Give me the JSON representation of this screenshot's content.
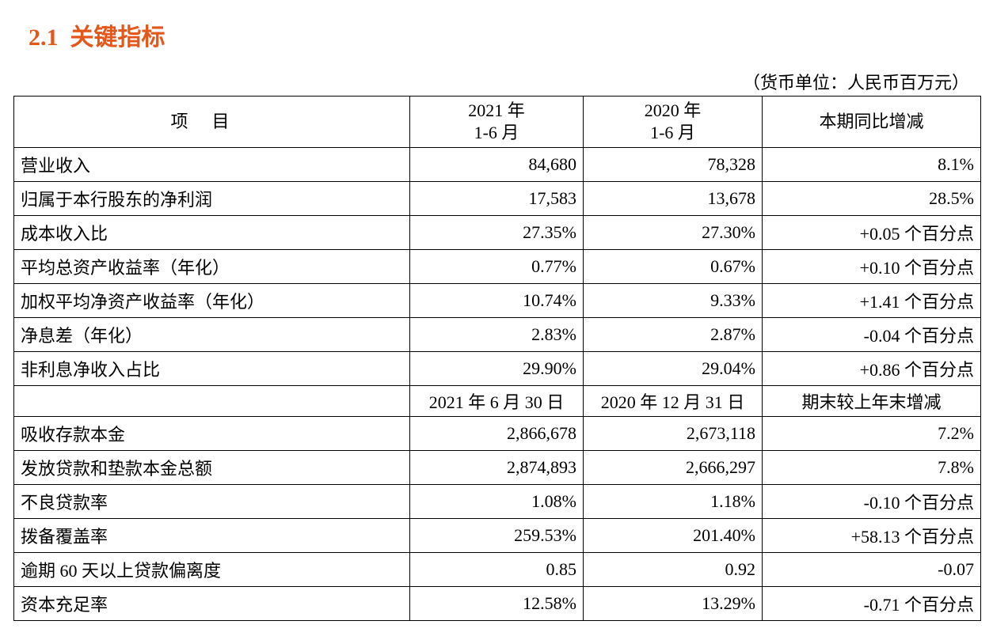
{
  "section": {
    "number": "2.1",
    "title": "关键指标"
  },
  "unit_note": "（货币单位：人民币百万元）",
  "table": {
    "header": {
      "item": "项目",
      "col1_line1": "2021 年",
      "col1_line2": "1-6 月",
      "col2_line1": "2020 年",
      "col2_line2": "1-6 月",
      "col3": "本期同比增减"
    },
    "rows_period": [
      {
        "label": "营业收入",
        "v2021": "84,680",
        "v2020": "78,328",
        "change": "8.1%"
      },
      {
        "label": "归属于本行股东的净利润",
        "v2021": "17,583",
        "v2020": "13,678",
        "change": "28.5%"
      },
      {
        "label": "成本收入比",
        "v2021": "27.35%",
        "v2020": "27.30%",
        "change": "+0.05 个百分点"
      },
      {
        "label": "平均总资产收益率（年化）",
        "v2021": "0.77%",
        "v2020": "0.67%",
        "change": "+0.10 个百分点"
      },
      {
        "label": "加权平均净资产收益率（年化）",
        "v2021": "10.74%",
        "v2020": "9.33%",
        "change": "+1.41 个百分点"
      },
      {
        "label": "净息差（年化）",
        "v2021": "2.83%",
        "v2020": "2.87%",
        "change": "-0.04 个百分点"
      },
      {
        "label": "非利息净收入占比",
        "v2021": "29.90%",
        "v2020": "29.04%",
        "change": "+0.86 个百分点"
      }
    ],
    "subheader": {
      "item": "",
      "col1": "2021 年 6 月 30 日",
      "col2": "2020 年 12 月 31 日",
      "col3": "期末较上年末增减"
    },
    "rows_balance": [
      {
        "label": "吸收存款本金",
        "v2021": "2,866,678",
        "v2020": "2,673,118",
        "change": "7.2%"
      },
      {
        "label": "发放贷款和垫款本金总额",
        "v2021": "2,874,893",
        "v2020": "2,666,297",
        "change": "7.8%"
      },
      {
        "label": "不良贷款率",
        "v2021": "1.08%",
        "v2020": "1.18%",
        "change": "-0.10 个百分点"
      },
      {
        "label": "拨备覆盖率",
        "v2021": "259.53%",
        "v2020": "201.40%",
        "change": "+58.13 个百分点"
      },
      {
        "label": "逾期 60 天以上贷款偏离度",
        "v2021": "0.85",
        "v2020": "0.92",
        "change": "-0.07"
      },
      {
        "label": "资本充足率",
        "v2021": "12.58%",
        "v2020": "13.29%",
        "change": "-0.71 个百分点"
      }
    ]
  }
}
